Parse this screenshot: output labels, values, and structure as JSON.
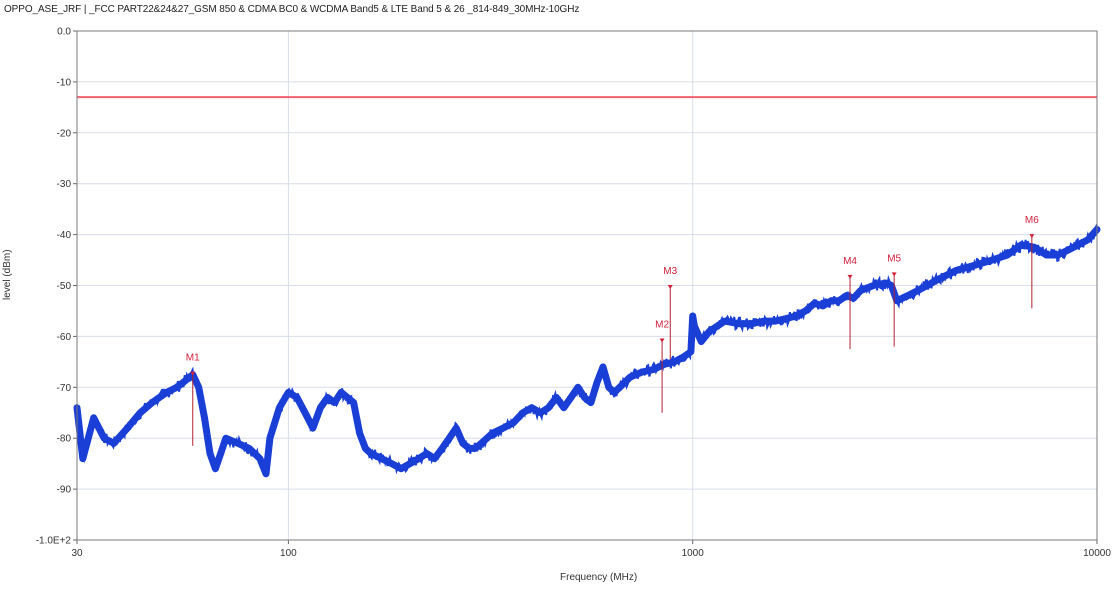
{
  "chart_data": {
    "type": "line",
    "title": "OPPO_ASE_JRF | _FCC PART22&24&27_GSM 850 & CDMA BC0 & WCDMA Band5 & LTE Band 5 & 26 _814-849_30MHz-10GHz",
    "xlabel": "Frequency (MHz)",
    "ylabel": "level (dBm)",
    "x_scale": "log",
    "xlim": [
      30,
      10000
    ],
    "ylim": [
      -100,
      0
    ],
    "x_ticks": [
      30,
      100,
      1000,
      10000
    ],
    "x_tick_labels": [
      "30",
      "100",
      "1000",
      "10000"
    ],
    "y_ticks": [
      0,
      -10,
      -20,
      -30,
      -40,
      -50,
      -60,
      -70,
      -80,
      -90,
      -100
    ],
    "y_tick_labels": [
      "0.0",
      "-10",
      "-20",
      "-30",
      "-40",
      "-50",
      "-60",
      "-70",
      "-80",
      "-90",
      "-1.0E+2"
    ],
    "grid": true,
    "limit_line": {
      "value": -13,
      "color": "#f06070"
    },
    "series": [
      {
        "color": "#1a3fd6",
        "x": [
          30,
          31,
          33,
          35,
          37,
          40,
          43,
          46,
          50,
          53,
          55,
          57,
          58,
          60,
          62,
          64,
          66,
          68,
          70,
          75,
          80,
          85,
          88,
          90,
          95,
          100,
          105,
          110,
          115,
          120,
          125,
          130,
          135,
          140,
          145,
          150,
          155,
          160,
          170,
          180,
          190,
          200,
          210,
          220,
          230,
          240,
          250,
          260,
          270,
          280,
          290,
          300,
          320,
          340,
          360,
          380,
          400,
          420,
          440,
          460,
          480,
          500,
          520,
          540,
          560,
          580,
          600,
          620,
          640,
          660,
          680,
          700,
          750,
          800,
          850,
          900,
          950,
          990,
          1000,
          1010,
          1050,
          1100,
          1150,
          1200,
          1300,
          1400,
          1500,
          1600,
          1700,
          1800,
          1900,
          2000,
          2100,
          2200,
          2300,
          2400,
          2500,
          2600,
          2800,
          3000,
          3100,
          3200,
          3400,
          3600,
          3800,
          4000,
          4500,
          5000,
          5500,
          6000,
          6500,
          7000,
          7500,
          8000,
          8500,
          9000,
          9500,
          10000
        ],
        "y": [
          -74,
          -84,
          -76,
          -80,
          -81,
          -78,
          -75,
          -73,
          -71,
          -70,
          -69,
          -68,
          -67.5,
          -70,
          -76,
          -83,
          -86,
          -83,
          -80,
          -81,
          -82,
          -84,
          -87,
          -80,
          -74,
          -71,
          -72,
          -75,
          -78,
          -74,
          -72,
          -73,
          -71,
          -72,
          -73,
          -79,
          -82,
          -83,
          -84,
          -85,
          -86,
          -85,
          -84,
          -83,
          -84,
          -82,
          -80,
          -78,
          -81,
          -82,
          -82,
          -81,
          -79,
          -78,
          -77,
          -75,
          -74,
          -75,
          -74,
          -72,
          -74,
          -72,
          -70,
          -72,
          -73,
          -69,
          -66,
          -70,
          -71,
          -70,
          -69,
          -68,
          -67,
          -66.5,
          -65.5,
          -65,
          -64,
          -63,
          -56,
          -58,
          -61,
          -59,
          -58,
          -57,
          -57.5,
          -57.5,
          -57,
          -57,
          -56.5,
          -56,
          -55,
          -53.5,
          -54,
          -53,
          -53,
          -52,
          -52.5,
          -51,
          -50,
          -49.5,
          -50,
          -53,
          -52,
          -51,
          -50,
          -49,
          -47,
          -46,
          -45,
          -44,
          -42,
          -42.5,
          -44,
          -44,
          -43,
          -42,
          -41,
          -39
        ]
      }
    ],
    "markers": [
      {
        "label": "M1",
        "x": 58,
        "y": -67.5
      },
      {
        "label": "M2",
        "x": 840,
        "y": -61
      },
      {
        "label": "M3",
        "x": 880,
        "y": -50.5
      },
      {
        "label": "M4",
        "x": 2450,
        "y": -48.5
      },
      {
        "label": "M5",
        "x": 3150,
        "y": -48
      },
      {
        "label": "M6",
        "x": 6900,
        "y": -40.5
      }
    ]
  }
}
